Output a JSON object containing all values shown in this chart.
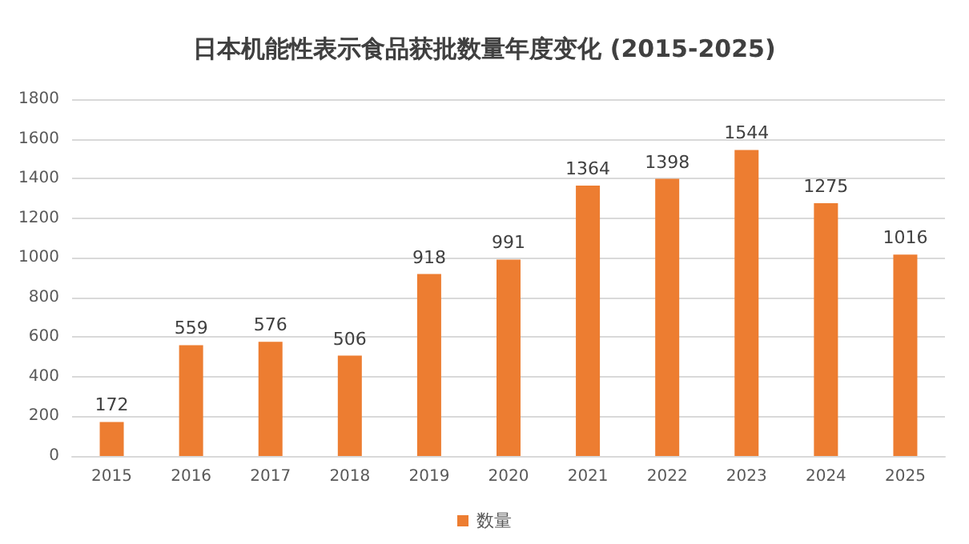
{
  "chart_data": {
    "type": "bar",
    "title": "日本机能性表示食品获批数量年度变化 (2015-2025)",
    "categories": [
      "2015",
      "2016",
      "2017",
      "2018",
      "2019",
      "2020",
      "2021",
      "2022",
      "2023",
      "2024",
      "2025"
    ],
    "series": [
      {
        "name": "数量",
        "color": "#ed7d31",
        "values": [
          172,
          559,
          576,
          506,
          918,
          991,
          1364,
          1398,
          1544,
          1275,
          1016
        ]
      }
    ],
    "ylim": [
      0,
      1800
    ],
    "yticks": [
      0,
      200,
      400,
      600,
      800,
      1000,
      1200,
      1400,
      1600,
      1800
    ],
    "grid": "y",
    "legend": "bottom",
    "data_labels": true
  }
}
